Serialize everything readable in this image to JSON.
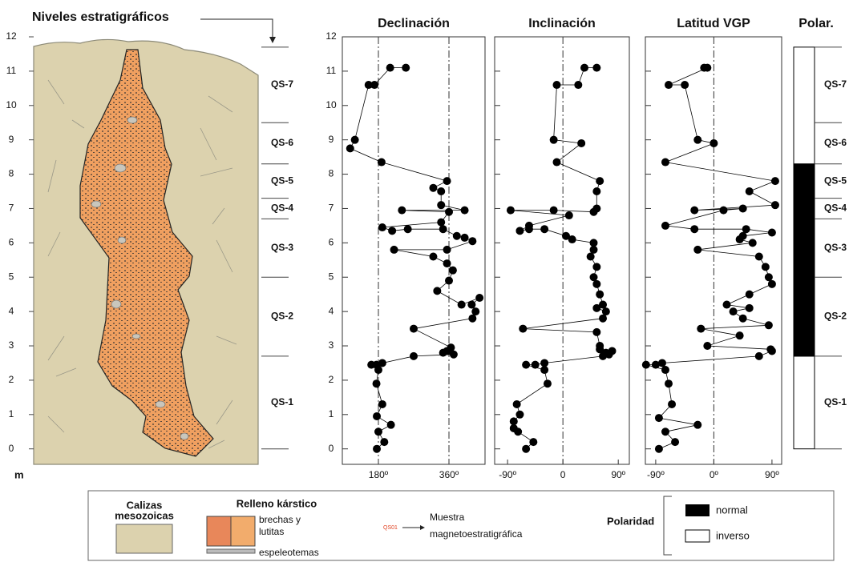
{
  "title": "Niveles estratigráficos",
  "depth_axis": {
    "unit": "m",
    "lim": [
      -0.45,
      12
    ],
    "ticks": [
      0,
      1,
      2,
      3,
      4,
      5,
      6,
      7,
      8,
      9,
      10,
      11,
      12
    ]
  },
  "levels": [
    {
      "name": "QS-1",
      "bottom": 0,
      "top": 2.7
    },
    {
      "name": "QS-2",
      "bottom": 2.7,
      "top": 5.0
    },
    {
      "name": "QS-3",
      "bottom": 5.0,
      "top": 6.7
    },
    {
      "name": "QS-4",
      "bottom": 6.7,
      "top": 7.3
    },
    {
      "name": "QS-5",
      "bottom": 7.3,
      "top": 8.3
    },
    {
      "name": "QS-6",
      "bottom": 8.3,
      "top": 9.5
    },
    {
      "name": "QS-7",
      "bottom": 9.5,
      "top": 11.7
    }
  ],
  "chart_data": [
    {
      "type": "profile",
      "title": "Declinación",
      "color": "#000000",
      "xlim": [
        88,
        452
      ],
      "xticks": [
        {
          "value": 180,
          "label": "180º"
        },
        {
          "value": 360,
          "label": "360º"
        }
      ],
      "reference_lines": [
        180,
        360
      ],
      "depth": [
        0,
        0.2,
        0.5,
        0.7,
        0.95,
        1.3,
        1.9,
        2.3,
        2.45,
        2.45,
        2.5,
        2.7,
        2.75,
        2.8,
        2.85,
        2.95,
        3.5,
        3.8,
        4.0,
        4.2,
        4.4,
        4.2,
        4.6,
        4.9,
        5.2,
        5.4,
        5.6,
        5.8,
        5.8,
        6.05,
        6.15,
        6.2,
        6.4,
        6.4,
        6.35,
        6.45,
        6.6,
        6.9,
        6.95,
        6.95,
        7.1,
        7.5,
        7.6,
        7.8,
        8.35,
        8.75,
        9.0,
        10.6,
        10.6,
        11.1,
        11.1
      ],
      "values": [
        176,
        195,
        180,
        212,
        176,
        190,
        175,
        180,
        162,
        175,
        190,
        270,
        372,
        345,
        355,
        365,
        270,
        420,
        428,
        418,
        438,
        392,
        330,
        360,
        370,
        355,
        320,
        220,
        355,
        420,
        400,
        380,
        345,
        255,
        215,
        190,
        340,
        360,
        240,
        400,
        340,
        340,
        320,
        355,
        188,
        108,
        120,
        155,
        170,
        210,
        250
      ]
    },
    {
      "type": "profile",
      "title": "Inclinación",
      "color": "#000000",
      "xlim": [
        -111,
        108
      ],
      "xticks": [
        {
          "value": -90,
          "label": "-90º"
        },
        0,
        {
          "value": 90,
          "label": "90º"
        }
      ],
      "reference_lines": [
        0
      ],
      "depth": [
        0,
        0.2,
        0.5,
        0.6,
        0.8,
        1.0,
        1.3,
        1.9,
        2.3,
        2.45,
        2.45,
        2.5,
        2.7,
        2.75,
        2.8,
        2.85,
        2.9,
        3.0,
        3.4,
        3.5,
        3.8,
        4.0,
        4.1,
        4.2,
        4.5,
        4.8,
        5.0,
        5.3,
        5.6,
        5.8,
        6.0,
        6.1,
        6.2,
        6.4,
        6.4,
        6.35,
        6.5,
        6.8,
        6.95,
        6.95,
        6.9,
        7.0,
        7.5,
        7.8,
        8.35,
        8.9,
        9.0,
        10.6,
        10.6,
        11.1,
        11.1
      ],
      "values": [
        -60,
        -48,
        -73,
        -80,
        -80,
        -70,
        -75,
        -25,
        -30,
        -60,
        -45,
        -30,
        65,
        75,
        70,
        80,
        60,
        60,
        55,
        -65,
        65,
        70,
        55,
        65,
        60,
        55,
        50,
        55,
        45,
        50,
        50,
        15,
        5,
        -30,
        -55,
        -70,
        -55,
        10,
        -85,
        -15,
        50,
        55,
        55,
        60,
        -10,
        30,
        -15,
        -10,
        25,
        35,
        55
      ]
    },
    {
      "type": "profile",
      "title": "Latitud VGP",
      "color": "#000000",
      "xlim": [
        -106,
        105
      ],
      "xticks": [
        {
          "value": -90,
          "label": "-90º"
        },
        {
          "value": 0,
          "label": "0º"
        },
        {
          "value": 90,
          "label": "90º"
        }
      ],
      "reference_lines": [
        0
      ],
      "depth": [
        0,
        0.2,
        0.5,
        0.7,
        0.9,
        1.3,
        1.9,
        2.3,
        2.45,
        2.45,
        2.5,
        2.7,
        2.85,
        2.9,
        3.0,
        3.3,
        3.5,
        3.6,
        3.8,
        4.0,
        4.1,
        4.2,
        4.5,
        4.8,
        5.0,
        5.3,
        5.6,
        5.8,
        6.0,
        6.1,
        6.2,
        6.3,
        6.4,
        6.4,
        6.5,
        6.95,
        7.0,
        6.95,
        7.1,
        7.5,
        7.8,
        8.35,
        8.9,
        9.0,
        10.6,
        10.6,
        11.1,
        11.1
      ],
      "values": [
        -85,
        -60,
        -75,
        -25,
        -85,
        -65,
        -70,
        -75,
        -105,
        -90,
        -80,
        70,
        90,
        88,
        -10,
        40,
        -20,
        85,
        45,
        30,
        55,
        20,
        55,
        90,
        85,
        80,
        70,
        -25,
        60,
        40,
        45,
        90,
        50,
        -30,
        -75,
        15,
        45,
        -30,
        95,
        55,
        95,
        -75,
        0,
        -25,
        -45,
        -70,
        -10,
        -15
      ]
    },
    {
      "type": "polarity",
      "title": "Polar.",
      "intervals": [
        {
          "bottom": 0,
          "top": 2.7,
          "color": "#ffffff"
        },
        {
          "bottom": 2.7,
          "top": 8.3,
          "color": "#000000"
        },
        {
          "bottom": 8.3,
          "top": 11.7,
          "color": "#ffffff"
        }
      ]
    }
  ],
  "legend": {
    "calizas": [
      "Calizas",
      "mesozoicas"
    ],
    "relleno": "Relleno kárstico",
    "brechas": [
      "brechas y",
      "lutitas"
    ],
    "espeleotemas": "espeleotemas",
    "sample_code": "QS01",
    "muestra": [
      "Muestra",
      "magnetoestratigráfica"
    ],
    "polaridad": "Polaridad",
    "normal": "normal",
    "inverso": "inverso"
  }
}
